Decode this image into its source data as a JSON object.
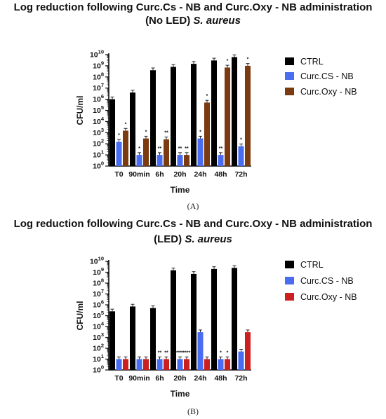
{
  "chart_data": [
    {
      "type": "bar",
      "panel_label": "(A)",
      "title_line1": "Log reduction following Curc.Cs - NB and Curc.Oxy - NB administration",
      "title_line2_normal": "(No LED) ",
      "title_line2_italic": "S. aureus",
      "xlabel": "Time",
      "ylabel": "CFU/ml",
      "y_scale": "log",
      "ylim": [
        1,
        10000000000
      ],
      "categories": [
        "T0",
        "90min",
        "6h",
        "20h",
        "24h",
        "48h",
        "72h"
      ],
      "legend_position": "right",
      "series": [
        {
          "name": "CTRL",
          "color": "#000000",
          "values": [
            1000000,
            4000000,
            400000000,
            800000000,
            1500000000,
            3000000000,
            6000000000
          ],
          "sig": [
            "",
            "",
            "",
            "",
            "",
            "",
            ""
          ]
        },
        {
          "name": "Curc.CS - NB",
          "color": "#4a6cf0",
          "values": [
            150,
            10,
            10,
            10,
            300,
            10,
            60
          ],
          "sig": [
            "*",
            "*",
            "**",
            "**",
            "*",
            "**",
            "*"
          ]
        },
        {
          "name": "Curc.Oxy - NB",
          "color": "#7b3a10",
          "values": [
            1500,
            300,
            250,
            10,
            500000,
            700000000,
            1000000000
          ],
          "sig": [
            "*",
            "*",
            "**",
            "**",
            "*",
            "*",
            "*"
          ]
        }
      ]
    },
    {
      "type": "bar",
      "panel_label": "(B)",
      "title_line1": "Log reduction following Curc.Cs - NB and Curc.Oxy - NB administration",
      "title_line2_normal": "(LED) ",
      "title_line2_italic": "S. aureus",
      "xlabel": "Time",
      "ylabel": "CFU/ml",
      "y_scale": "log",
      "ylim": [
        1,
        10000000000
      ],
      "categories": [
        "T0",
        "90min",
        "6h",
        "20h",
        "24h",
        "48h",
        "72h"
      ],
      "legend_position": "right",
      "series": [
        {
          "name": "CTRL",
          "color": "#000000",
          "values": [
            250000,
            700000,
            500000,
            1500000000,
            700000000,
            2000000000,
            2500000000
          ],
          "sig": [
            "",
            "",
            "",
            "",
            "",
            "",
            ""
          ]
        },
        {
          "name": "Curc.CS - NB",
          "color": "#4a6cf0",
          "values": [
            10,
            10,
            10,
            10,
            3000,
            10,
            50
          ],
          "sig": [
            "",
            "",
            "**",
            "****",
            "",
            "*",
            ""
          ]
        },
        {
          "name": "Curc.Oxy - NB",
          "color": "#cc2020",
          "values": [
            10,
            10,
            10,
            10,
            10,
            10,
            3000
          ],
          "sig": [
            "",
            "",
            "**",
            "****",
            "",
            "*",
            ""
          ]
        }
      ]
    }
  ]
}
